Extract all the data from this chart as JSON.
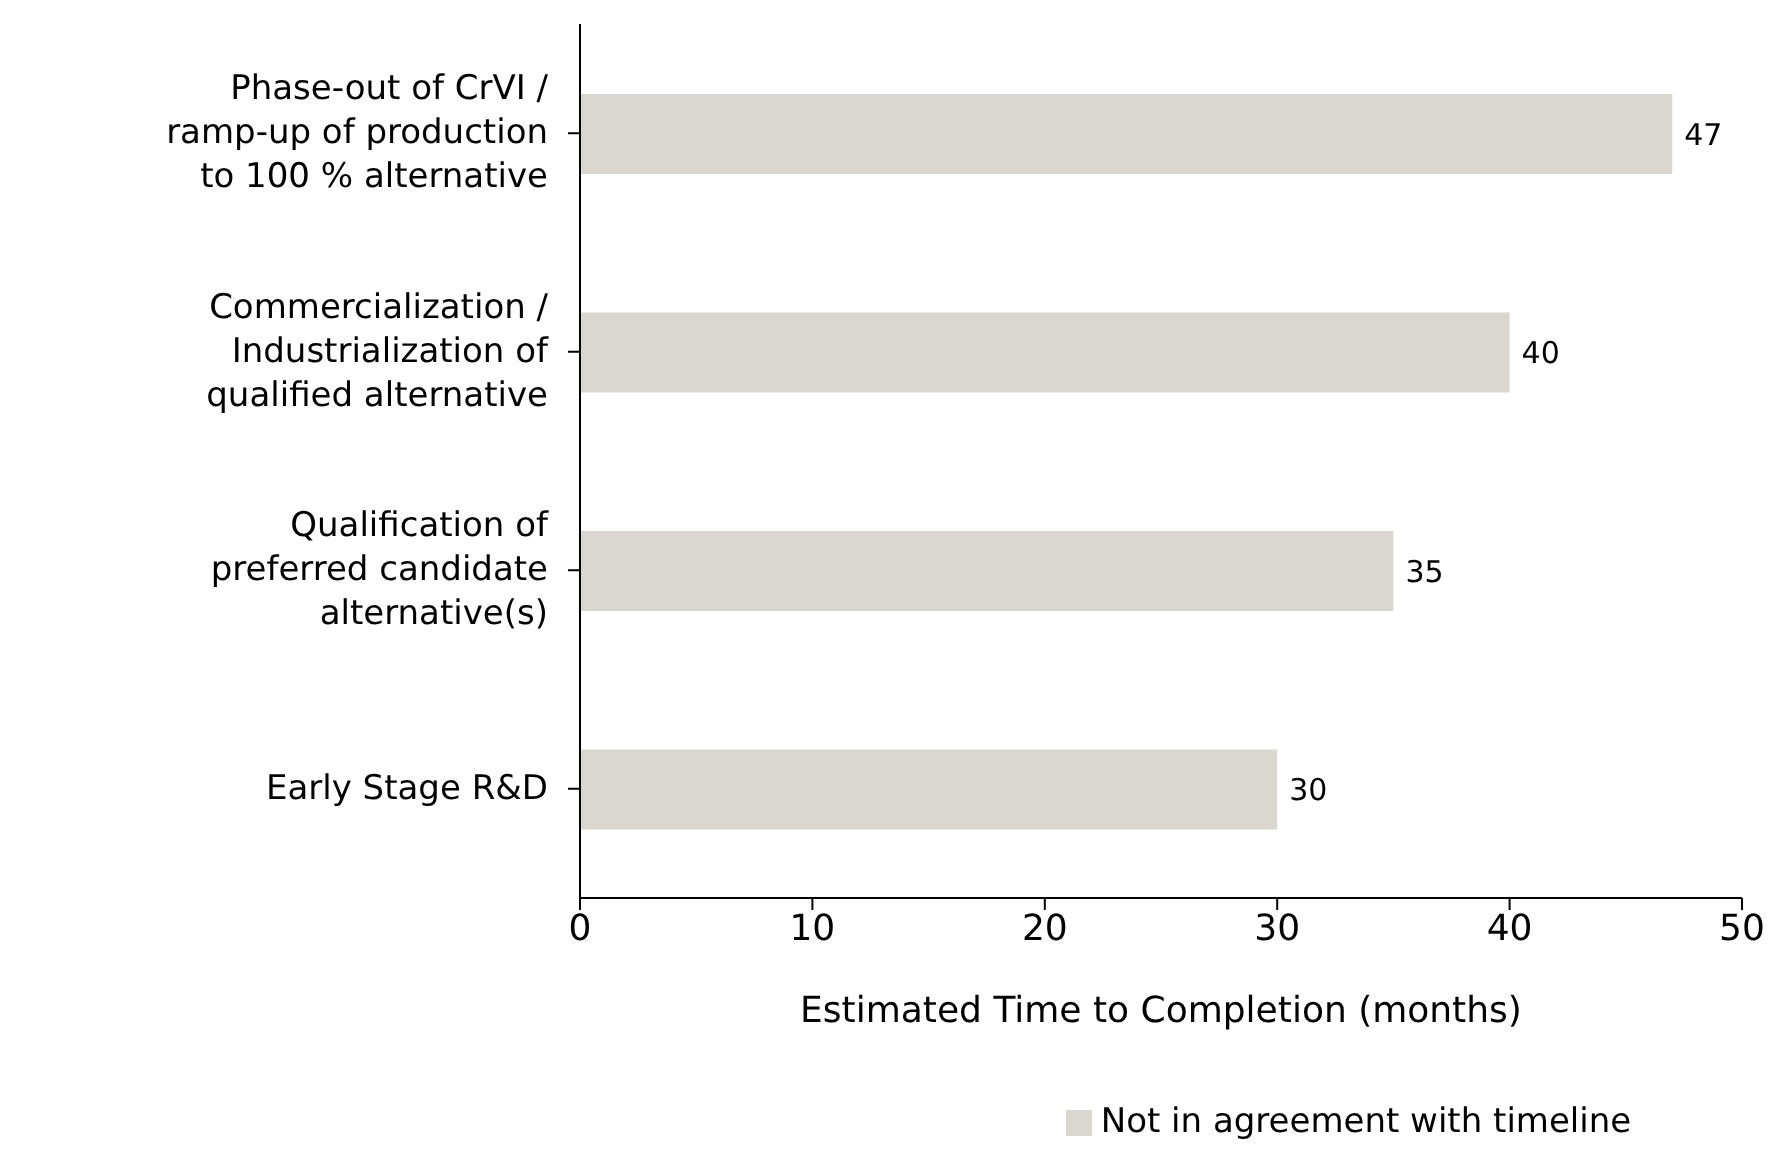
{
  "chart_data": {
    "type": "bar",
    "orientation": "horizontal",
    "categories": [
      "Phase-out of CrVI / ramp-up of production to 100 % alternative",
      "Commercialization / Industrialization of qualified alternative",
      "Qualification of preferred candidate alternative(s)",
      "Early Stage R&D"
    ],
    "series": [
      {
        "name": "Not in agreement with timeline",
        "color": "#d9d7d0",
        "values": [
          47,
          40,
          35,
          30
        ]
      }
    ],
    "xlim": [
      0,
      50
    ],
    "xticks": [
      0,
      10,
      20,
      30,
      40,
      50
    ],
    "xlabel": "Estimated Time to Completion (months)",
    "data_labels": true,
    "grid": false,
    "legend": "bottom"
  }
}
